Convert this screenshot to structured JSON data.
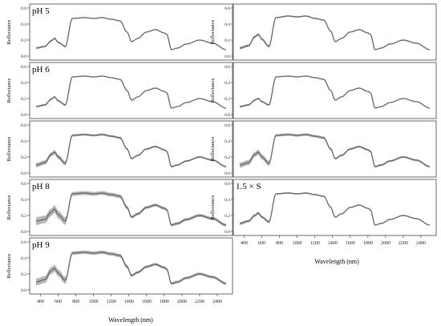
{
  "figure": {
    "x_tick_labels": [
      "400",
      "600",
      "800",
      "1000",
      "1200",
      "1400",
      "1600",
      "1800",
      "2000",
      "2200",
      "2400"
    ],
    "y_tick_labels": [
      "0.0",
      "0.2",
      "0.4",
      "0.6"
    ],
    "left_xlabel": "Wavelength (nm)",
    "right_xlabel": "Wavelength (nm)"
  },
  "chart_data": [
    {
      "type": "line",
      "panel_label": "pH 5",
      "ylabel": "Reflectance",
      "xlim": [
        350,
        2500
      ],
      "ylim": [
        0,
        0.6
      ],
      "band_scale": 0.6,
      "grid": false,
      "series": [
        {
          "x": [
            350,
            450,
            520,
            560,
            600,
            680,
            760,
            900,
            1000,
            1100,
            1200,
            1300,
            1380,
            1430,
            1500,
            1600,
            1700,
            1800,
            1830,
            1880,
            1950,
            2050,
            2200,
            2350,
            2500
          ],
          "values": [
            0.1,
            0.12,
            0.19,
            0.22,
            0.17,
            0.12,
            0.47,
            0.48,
            0.47,
            0.48,
            0.46,
            0.44,
            0.3,
            0.18,
            0.22,
            0.3,
            0.33,
            0.29,
            0.27,
            0.08,
            0.1,
            0.15,
            0.2,
            0.16,
            0.08
          ]
        }
      ]
    },
    {
      "type": "line",
      "panel_label": "",
      "ylabel": "Reflectance",
      "xlim": [
        350,
        2500
      ],
      "ylim": [
        0,
        0.6
      ],
      "band_scale": 0.8,
      "grid": false,
      "series": [
        {
          "x": [
            350,
            450,
            520,
            560,
            600,
            680,
            760,
            900,
            1000,
            1100,
            1200,
            1300,
            1380,
            1430,
            1500,
            1600,
            1700,
            1800,
            1830,
            1880,
            1950,
            2050,
            2200,
            2350,
            2500
          ],
          "values": [
            0.1,
            0.13,
            0.24,
            0.27,
            0.21,
            0.12,
            0.48,
            0.5,
            0.49,
            0.5,
            0.47,
            0.45,
            0.31,
            0.18,
            0.22,
            0.3,
            0.33,
            0.29,
            0.27,
            0.08,
            0.1,
            0.15,
            0.2,
            0.16,
            0.08
          ]
        }
      ]
    },
    {
      "type": "line",
      "panel_label": "pH 6",
      "ylabel": "Reflectance",
      "xlim": [
        350,
        2500
      ],
      "ylim": [
        0,
        0.6
      ],
      "band_scale": 0.6,
      "grid": false,
      "series": [
        {
          "x": [
            350,
            450,
            520,
            560,
            600,
            680,
            760,
            900,
            1000,
            1100,
            1200,
            1300,
            1380,
            1430,
            1500,
            1600,
            1700,
            1800,
            1830,
            1880,
            1950,
            2050,
            2200,
            2350,
            2500
          ],
          "values": [
            0.1,
            0.12,
            0.19,
            0.22,
            0.17,
            0.12,
            0.47,
            0.48,
            0.47,
            0.48,
            0.46,
            0.44,
            0.3,
            0.18,
            0.22,
            0.3,
            0.33,
            0.29,
            0.27,
            0.08,
            0.1,
            0.15,
            0.2,
            0.16,
            0.08
          ]
        }
      ]
    },
    {
      "type": "line",
      "panel_label": "",
      "ylabel": "Reflectance",
      "xlim": [
        350,
        2500
      ],
      "ylim": [
        0,
        0.6
      ],
      "band_scale": 0.6,
      "grid": false,
      "series": [
        {
          "x": [
            350,
            450,
            520,
            560,
            600,
            680,
            760,
            900,
            1000,
            1100,
            1200,
            1300,
            1380,
            1430,
            1500,
            1600,
            1700,
            1800,
            1830,
            1880,
            1950,
            2050,
            2200,
            2350,
            2500
          ],
          "values": [
            0.1,
            0.12,
            0.18,
            0.2,
            0.16,
            0.12,
            0.47,
            0.48,
            0.47,
            0.48,
            0.46,
            0.44,
            0.3,
            0.18,
            0.22,
            0.3,
            0.33,
            0.29,
            0.27,
            0.08,
            0.1,
            0.15,
            0.2,
            0.16,
            0.08
          ]
        }
      ]
    },
    {
      "type": "line",
      "panel_label": "",
      "ylabel": "Reflectance",
      "xlim": [
        350,
        2500
      ],
      "ylim": [
        0,
        0.6
      ],
      "band_scale": 1.4,
      "grid": false,
      "series": [
        {
          "x": [
            350,
            450,
            520,
            560,
            600,
            680,
            760,
            900,
            1000,
            1100,
            1200,
            1300,
            1380,
            1430,
            1500,
            1600,
            1700,
            1800,
            1830,
            1880,
            1950,
            2050,
            2200,
            2350,
            2500
          ],
          "values": [
            0.1,
            0.13,
            0.23,
            0.26,
            0.2,
            0.12,
            0.47,
            0.48,
            0.47,
            0.48,
            0.46,
            0.44,
            0.3,
            0.18,
            0.22,
            0.3,
            0.33,
            0.29,
            0.27,
            0.08,
            0.1,
            0.15,
            0.2,
            0.16,
            0.08
          ]
        }
      ]
    },
    {
      "type": "line",
      "panel_label": "",
      "ylabel": "Reflectance",
      "xlim": [
        350,
        2500
      ],
      "ylim": [
        0,
        0.6
      ],
      "band_scale": 1.6,
      "grid": false,
      "series": [
        {
          "x": [
            350,
            450,
            520,
            560,
            600,
            680,
            760,
            900,
            1000,
            1100,
            1200,
            1300,
            1380,
            1430,
            1500,
            1600,
            1700,
            1800,
            1830,
            1880,
            1950,
            2050,
            2200,
            2350,
            2500
          ],
          "values": [
            0.1,
            0.13,
            0.23,
            0.26,
            0.2,
            0.12,
            0.47,
            0.48,
            0.47,
            0.48,
            0.46,
            0.44,
            0.3,
            0.18,
            0.22,
            0.3,
            0.33,
            0.29,
            0.27,
            0.08,
            0.1,
            0.15,
            0.2,
            0.16,
            0.08
          ]
        }
      ]
    },
    {
      "type": "line",
      "panel_label": "pH 8",
      "ylabel": "Reflectance",
      "xlim": [
        350,
        2500
      ],
      "ylim": [
        0,
        0.6
      ],
      "band_scale": 2.4,
      "grid": false,
      "series": [
        {
          "x": [
            350,
            450,
            520,
            560,
            600,
            680,
            760,
            900,
            1000,
            1100,
            1200,
            1300,
            1380,
            1430,
            1500,
            1600,
            1700,
            1800,
            1830,
            1880,
            1950,
            2050,
            2200,
            2350,
            2500
          ],
          "values": [
            0.13,
            0.15,
            0.24,
            0.28,
            0.21,
            0.13,
            0.47,
            0.48,
            0.47,
            0.48,
            0.46,
            0.44,
            0.3,
            0.18,
            0.22,
            0.3,
            0.33,
            0.29,
            0.27,
            0.08,
            0.1,
            0.15,
            0.2,
            0.16,
            0.08
          ]
        }
      ]
    },
    {
      "type": "line",
      "panel_label": "1.5 × S",
      "ylabel": "Reflectance",
      "xlim": [
        350,
        2500
      ],
      "ylim": [
        0,
        0.6
      ],
      "band_scale": 0.9,
      "grid": false,
      "series": [
        {
          "x": [
            350,
            450,
            520,
            560,
            600,
            680,
            760,
            900,
            1000,
            1100,
            1200,
            1300,
            1380,
            1430,
            1500,
            1600,
            1700,
            1800,
            1830,
            1880,
            1950,
            2050,
            2200,
            2350,
            2500
          ],
          "values": [
            0.1,
            0.13,
            0.2,
            0.23,
            0.18,
            0.12,
            0.47,
            0.48,
            0.47,
            0.48,
            0.46,
            0.44,
            0.3,
            0.18,
            0.22,
            0.3,
            0.33,
            0.29,
            0.27,
            0.08,
            0.1,
            0.15,
            0.2,
            0.16,
            0.08
          ]
        }
      ]
    },
    {
      "type": "line",
      "panel_label": "pH 9",
      "ylabel": "Reflectance",
      "xlim": [
        350,
        2500
      ],
      "ylim": [
        0,
        0.6
      ],
      "band_scale": 2.2,
      "grid": false,
      "series": [
        {
          "x": [
            350,
            450,
            520,
            560,
            600,
            680,
            760,
            900,
            1000,
            1100,
            1200,
            1300,
            1380,
            1430,
            1500,
            1600,
            1700,
            1800,
            1830,
            1880,
            1950,
            2050,
            2200,
            2350,
            2500
          ],
          "values": [
            0.1,
            0.13,
            0.24,
            0.27,
            0.21,
            0.12,
            0.46,
            0.47,
            0.46,
            0.47,
            0.45,
            0.43,
            0.29,
            0.18,
            0.22,
            0.29,
            0.32,
            0.28,
            0.26,
            0.08,
            0.1,
            0.15,
            0.2,
            0.16,
            0.08
          ]
        }
      ]
    }
  ]
}
